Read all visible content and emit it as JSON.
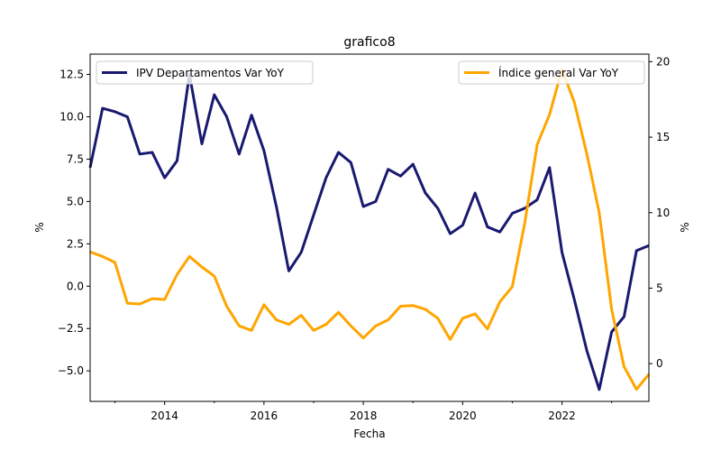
{
  "chart_data": {
    "type": "line",
    "title": "grafico8",
    "xlabel": "Fecha",
    "ylabel_left": "%",
    "ylabel_right": "%",
    "xlim": [
      2012.5,
      2023.75
    ],
    "ylim_left": [
      -6.8,
      13.7
    ],
    "ylim_right": [
      -2.5,
      20.5
    ],
    "x_ticks": [
      2014,
      2016,
      2018,
      2020,
      2022
    ],
    "x_tick_labels": [
      "2014",
      "2016",
      "2018",
      "2020",
      "2022"
    ],
    "x_minor_ticks": [
      2013,
      2015,
      2017,
      2019,
      2021,
      2023
    ],
    "y_left_ticks": [
      -5.0,
      -2.5,
      0.0,
      2.5,
      5.0,
      7.5,
      10.0,
      12.5
    ],
    "y_left_tick_labels": [
      "−5.0",
      "−2.5",
      "0.0",
      "2.5",
      "5.0",
      "7.5",
      "10.0",
      "12.5"
    ],
    "y_right_ticks": [
      0,
      5,
      10,
      15,
      20
    ],
    "y_right_tick_labels": [
      "0",
      "5",
      "10",
      "15",
      "20"
    ],
    "grid": false,
    "legend_left": {
      "placement": "top-left",
      "label": "IPV Departamentos Var YoY",
      "color": "#191970"
    },
    "legend_right": {
      "placement": "top-right",
      "label": "Índice general Var YoY",
      "color": "#FFA500"
    },
    "series": [
      {
        "name": "IPV Departamentos Var YoY",
        "axis": "left",
        "color": "#191970",
        "x": [
          2012.5,
          2012.75,
          2013.0,
          2013.25,
          2013.5,
          2013.75,
          2014.0,
          2014.25,
          2014.5,
          2014.75,
          2015.0,
          2015.25,
          2015.5,
          2015.75,
          2016.0,
          2016.25,
          2016.5,
          2016.75,
          2017.0,
          2017.25,
          2017.5,
          2017.75,
          2018.0,
          2018.25,
          2018.5,
          2018.75,
          2019.0,
          2019.25,
          2019.5,
          2019.75,
          2020.0,
          2020.25,
          2020.5,
          2020.75,
          2021.0,
          2021.25,
          2021.5,
          2021.75,
          2022.0,
          2022.25,
          2022.5,
          2022.75,
          2023.0,
          2023.25,
          2023.5,
          2023.75
        ],
        "values": [
          7.0,
          10.5,
          10.3,
          10.0,
          7.8,
          7.9,
          6.4,
          7.4,
          12.5,
          8.4,
          11.3,
          10.0,
          7.8,
          10.1,
          8.0,
          4.7,
          0.9,
          2.0,
          4.2,
          6.4,
          7.9,
          7.3,
          4.7,
          5.0,
          6.9,
          6.5,
          7.2,
          5.5,
          4.6,
          3.1,
          3.6,
          5.5,
          3.5,
          3.2,
          4.3,
          4.6,
          5.1,
          7.0,
          2.0,
          -0.8,
          -3.8,
          -6.1,
          -2.7,
          -1.8,
          2.1,
          2.4
        ]
      },
      {
        "name": "Índice general Var YoY",
        "axis": "right",
        "color": "#FFA500",
        "x": [
          2012.5,
          2012.75,
          2013.0,
          2013.25,
          2013.5,
          2013.75,
          2014.0,
          2014.25,
          2014.5,
          2014.75,
          2015.0,
          2015.25,
          2015.5,
          2015.75,
          2016.0,
          2016.25,
          2016.5,
          2016.75,
          2017.0,
          2017.25,
          2017.5,
          2017.75,
          2018.0,
          2018.25,
          2018.5,
          2018.75,
          2019.0,
          2019.25,
          2019.5,
          2019.75,
          2020.0,
          2020.25,
          2020.5,
          2020.75,
          2021.0,
          2021.25,
          2021.5,
          2021.75,
          2022.0,
          2022.25,
          2022.5,
          2022.75,
          2023.0,
          2023.25,
          2023.5,
          2023.75
        ],
        "values": [
          7.4,
          7.1,
          6.7,
          4.0,
          3.95,
          4.3,
          4.25,
          5.9,
          7.1,
          6.4,
          5.8,
          3.8,
          2.5,
          2.2,
          3.9,
          2.9,
          2.6,
          3.2,
          2.2,
          2.6,
          3.4,
          2.5,
          1.7,
          2.5,
          2.9,
          3.8,
          3.85,
          3.6,
          3.0,
          1.6,
          3.0,
          3.3,
          2.3,
          4.1,
          5.1,
          9.3,
          14.5,
          16.5,
          19.5,
          17.3,
          13.9,
          10.0,
          3.6,
          -0.2,
          -1.7,
          -0.7
        ]
      }
    ]
  }
}
